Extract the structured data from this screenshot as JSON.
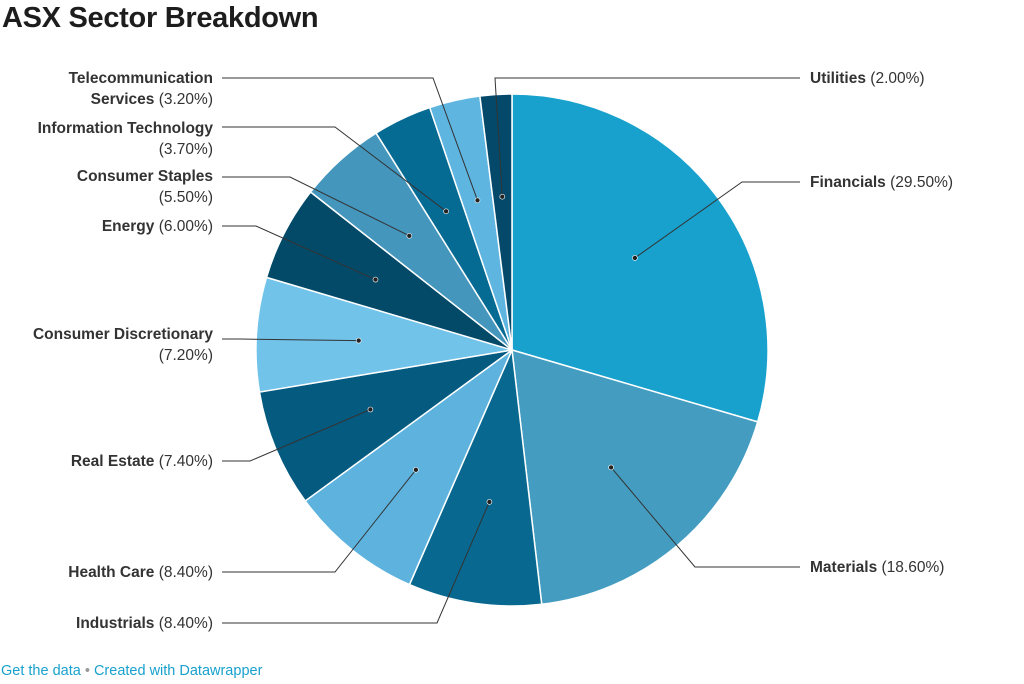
{
  "chart_data": {
    "type": "pie",
    "title": "ASX Sector Breakdown",
    "slices": [
      {
        "name": "Financials",
        "value": 29.5,
        "label": "(29.50%)",
        "color": "#18a1cd"
      },
      {
        "name": "Materials",
        "value": 18.6,
        "label": "(18.60%)",
        "color": "#449dc1"
      },
      {
        "name": "Industrials",
        "value": 8.4,
        "label": "(8.40%)",
        "color": "#08688f"
      },
      {
        "name": "Health Care",
        "value": 8.4,
        "label": "(8.40%)",
        "color": "#5db3de"
      },
      {
        "name": "Real Estate",
        "value": 7.4,
        "label": "(7.40%)",
        "color": "#055a80"
      },
      {
        "name": "Consumer Discretionary",
        "value": 7.2,
        "label": "(7.20%)",
        "color": "#72c3ea"
      },
      {
        "name": "Energy",
        "value": 6.0,
        "label": "(6.00%)",
        "color": "#034a69"
      },
      {
        "name": "Consumer Staples",
        "value": 5.5,
        "label": "(5.50%)",
        "color": "#4496bd"
      },
      {
        "name": "Information Technology",
        "value": 3.7,
        "label": "(3.70%)",
        "color": "#066b93"
      },
      {
        "name": "Telecommunication Services",
        "value": 3.2,
        "label": "(3.20%)",
        "color": "#5eb5e0"
      },
      {
        "name": "Utilities",
        "value": 2.0,
        "label": "(2.00%)",
        "color": "#04496a"
      }
    ]
  },
  "footer": {
    "get_data": "Get the data",
    "separator": "•",
    "created_with": "Created with Datawrapper"
  }
}
